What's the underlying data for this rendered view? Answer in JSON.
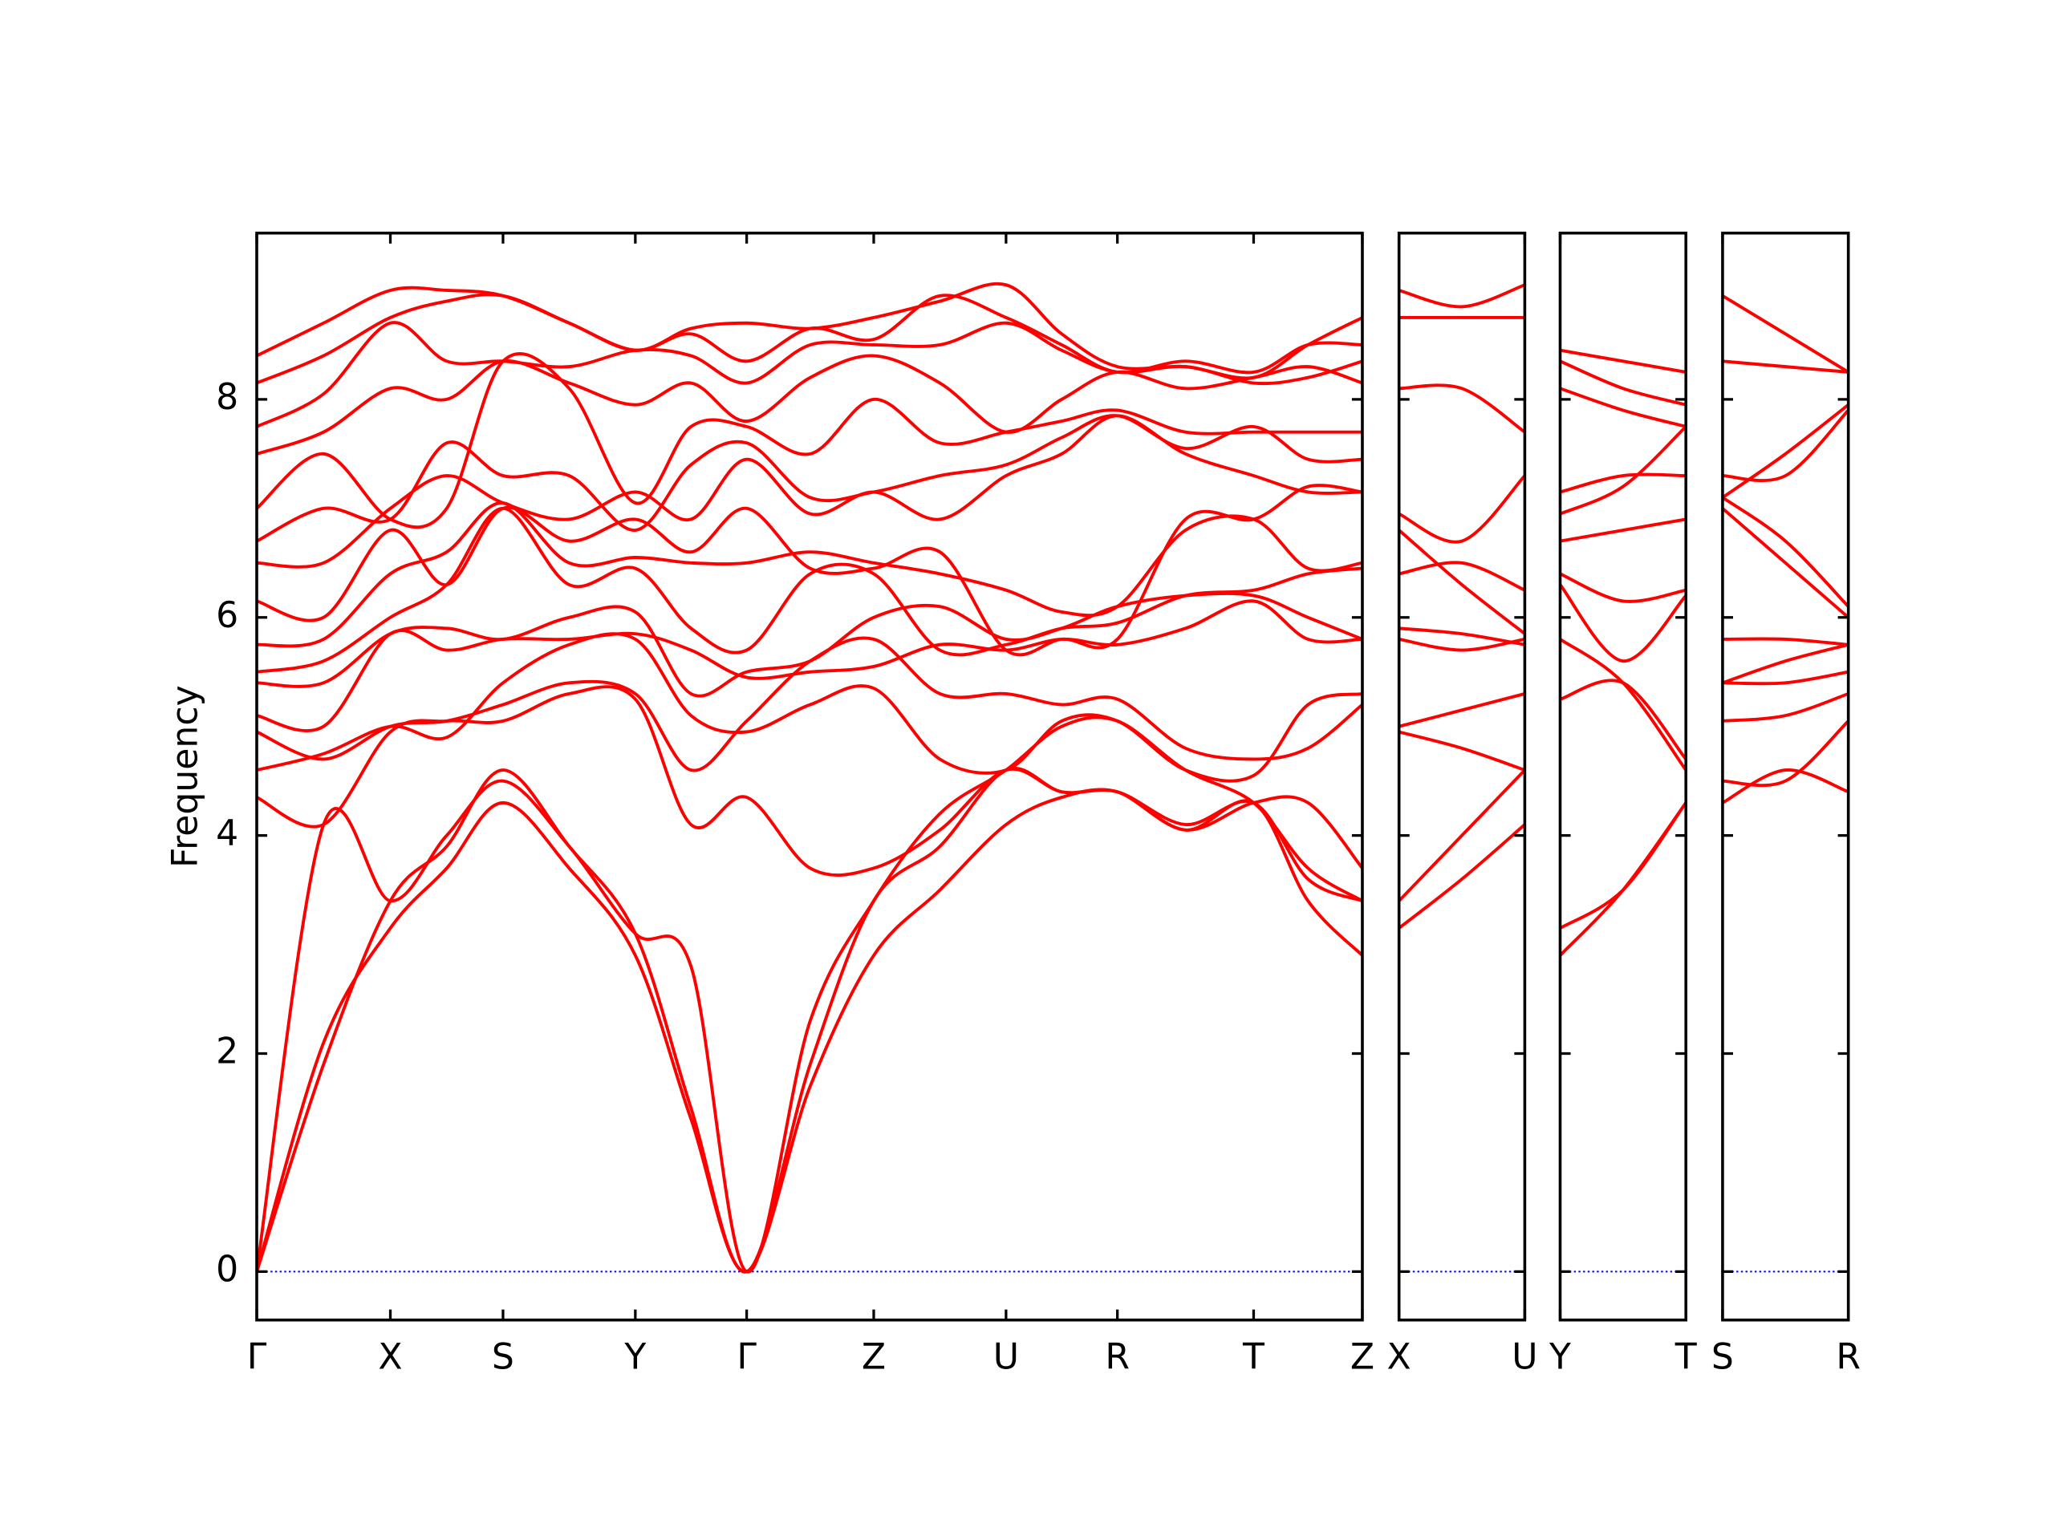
{
  "chart_data": [
    {
      "type": "line",
      "ylabel": "Frequency",
      "ylim": [
        -0.444,
        9.525
      ],
      "yticks": [
        0,
        2,
        4,
        6,
        8
      ],
      "hline": 0,
      "hline_color": "#0000ff",
      "xlim": [
        0,
        8.44
      ],
      "xticks": [
        {
          "value": 0,
          "label": "Γ"
        },
        {
          "value": 1.02,
          "label": "X"
        },
        {
          "value": 1.88,
          "label": "S"
        },
        {
          "value": 2.89,
          "label": "Y"
        },
        {
          "value": 3.74,
          "label": "Γ"
        },
        {
          "value": 4.71,
          "label": "Z"
        },
        {
          "value": 5.72,
          "label": "U"
        },
        {
          "value": 6.57,
          "label": "R"
        },
        {
          "value": 7.61,
          "label": "T"
        },
        {
          "value": 8.44,
          "label": "Z"
        }
      ],
      "x": [
        0,
        0.51,
        1.02,
        1.45,
        1.88,
        2.385,
        2.89,
        3.315,
        3.74,
        4.225,
        4.71,
        5.215,
        5.72,
        6.145,
        6.57,
        7.09,
        7.61,
        8.025,
        8.44
      ],
      "color": "#ff0000",
      "series": [
        {
          "values": [
            0,
            2.1,
            3.15,
            3.7,
            4.3,
            3.7,
            2.9,
            1.4,
            0,
            1.7,
            2.9,
            3.5,
            4.1,
            4.35,
            4.4,
            4.05,
            4.3,
            3.4,
            2.9
          ]
        },
        {
          "values": [
            0,
            1.9,
            3.4,
            3.9,
            4.6,
            3.9,
            3.1,
            1.5,
            0,
            1.9,
            3.4,
            3.9,
            4.6,
            4.4,
            4.4,
            4.1,
            4.3,
            3.6,
            3.4
          ]
        },
        {
          "values": [
            0,
            4.1,
            3.4,
            4.0,
            4.5,
            3.9,
            3.1,
            2.8,
            0,
            2.3,
            3.4,
            4.2,
            4.6,
            5.0,
            5.05,
            4.6,
            4.3,
            3.7,
            3.4
          ]
        },
        {
          "values": [
            4.35,
            4.1,
            4.95,
            5.05,
            5.05,
            5.3,
            5.25,
            4.1,
            4.35,
            3.7,
            3.7,
            4.05,
            4.6,
            4.4,
            4.4,
            4.05,
            4.3,
            4.3,
            3.7
          ]
        },
        {
          "values": [
            4.6,
            4.75,
            5.0,
            4.9,
            5.4,
            5.75,
            5.8,
            5.1,
            4.95,
            5.2,
            5.35,
            4.7,
            4.6,
            5.05,
            5.05,
            4.6,
            4.55,
            5.2,
            5.3
          ]
        },
        {
          "values": [
            4.95,
            4.7,
            5.0,
            5.05,
            5.2,
            5.4,
            5.3,
            4.6,
            5.05,
            5.6,
            5.8,
            5.3,
            5.3,
            5.2,
            5.25,
            4.8,
            4.7,
            4.8,
            5.2
          ]
        },
        {
          "values": [
            5.1,
            5.0,
            5.85,
            5.7,
            5.8,
            5.8,
            5.85,
            5.7,
            5.45,
            5.5,
            5.55,
            5.75,
            5.7,
            5.8,
            5.75,
            5.9,
            6.15,
            5.8,
            5.8
          ]
        },
        {
          "values": [
            5.4,
            5.4,
            5.85,
            5.9,
            5.8,
            6.0,
            6.05,
            5.3,
            5.5,
            5.6,
            6.0,
            6.1,
            5.8,
            5.9,
            6.1,
            6.2,
            6.2,
            6.0,
            5.8
          ]
        },
        {
          "values": [
            5.5,
            5.6,
            6.0,
            6.3,
            7.0,
            6.3,
            6.45,
            5.9,
            5.7,
            6.4,
            6.4,
            5.7,
            5.75,
            5.9,
            5.95,
            6.2,
            6.25,
            6.4,
            6.45
          ]
        },
        {
          "values": [
            5.75,
            5.8,
            6.4,
            6.6,
            7.05,
            6.5,
            6.55,
            6.5,
            6.5,
            6.6,
            6.5,
            6.4,
            6.25,
            6.05,
            6.1,
            6.8,
            6.9,
            6.45,
            6.5
          ]
        },
        {
          "values": [
            6.15,
            6.0,
            6.8,
            6.3,
            7.0,
            6.7,
            6.9,
            6.6,
            7.0,
            6.45,
            6.45,
            6.6,
            5.7,
            5.8,
            5.8,
            6.9,
            6.9,
            7.2,
            7.15
          ]
        },
        {
          "values": [
            6.5,
            6.5,
            7.0,
            7.3,
            7.05,
            6.9,
            7.15,
            6.9,
            7.45,
            6.95,
            7.15,
            6.9,
            7.3,
            7.5,
            7.85,
            7.5,
            7.3,
            7.15,
            7.15
          ]
        },
        {
          "values": [
            6.7,
            7.0,
            6.9,
            7.6,
            7.3,
            7.3,
            6.8,
            7.4,
            7.6,
            7.1,
            7.15,
            7.3,
            7.4,
            7.65,
            7.85,
            7.55,
            7.75,
            7.45,
            7.45
          ]
        },
        {
          "values": [
            7.0,
            7.5,
            6.9,
            7.0,
            8.35,
            8.1,
            7.05,
            7.75,
            7.75,
            7.5,
            8.0,
            7.6,
            7.7,
            7.8,
            7.9,
            7.7,
            7.7,
            7.7,
            7.7
          ]
        },
        {
          "values": [
            7.5,
            7.7,
            8.1,
            8.0,
            8.35,
            8.15,
            7.95,
            8.15,
            7.8,
            8.2,
            8.4,
            8.15,
            7.7,
            8.0,
            8.25,
            8.1,
            8.2,
            8.3,
            8.15
          ]
        },
        {
          "values": [
            7.75,
            8.05,
            8.7,
            8.35,
            8.35,
            8.3,
            8.45,
            8.4,
            8.15,
            8.5,
            8.5,
            8.5,
            8.7,
            8.45,
            8.25,
            8.3,
            8.15,
            8.2,
            8.35
          ]
        },
        {
          "values": [
            8.15,
            8.4,
            8.75,
            8.9,
            8.95,
            8.7,
            8.45,
            8.6,
            8.35,
            8.65,
            8.55,
            8.95,
            8.75,
            8.5,
            8.25,
            8.35,
            8.25,
            8.5,
            8.5
          ]
        },
        {
          "values": [
            8.4,
            8.7,
            9.0,
            9.0,
            8.95,
            8.7,
            8.45,
            8.65,
            8.7,
            8.65,
            8.75,
            8.9,
            9.05,
            8.6,
            8.3,
            8.3,
            8.2,
            8.5,
            8.75
          ]
        }
      ]
    },
    {
      "type": "line",
      "xlim": [
        0,
        1
      ],
      "xticks": [
        {
          "value": 0,
          "label": "X"
        },
        {
          "value": 1,
          "label": "U"
        }
      ],
      "x": [
        0,
        0.5,
        1
      ],
      "color": "#ff0000",
      "series": [
        {
          "values": [
            3.15,
            3.6,
            4.1
          ]
        },
        {
          "values": [
            3.4,
            4.0,
            4.6
          ]
        },
        {
          "values": [
            4.95,
            4.8,
            4.6
          ]
        },
        {
          "values": [
            5.0,
            5.15,
            5.3
          ]
        },
        {
          "values": [
            5.8,
            5.7,
            5.8
          ]
        },
        {
          "values": [
            5.9,
            5.85,
            5.75
          ]
        },
        {
          "values": [
            6.4,
            6.5,
            6.25
          ]
        },
        {
          "values": [
            6.8,
            6.3,
            5.85
          ]
        },
        {
          "values": [
            6.95,
            6.7,
            7.3
          ]
        },
        {
          "values": [
            8.1,
            8.1,
            7.7
          ]
        },
        {
          "values": [
            8.75,
            8.75,
            8.75
          ]
        },
        {
          "values": [
            9.0,
            8.85,
            9.05
          ]
        }
      ]
    },
    {
      "type": "line",
      "xlim": [
        0,
        1
      ],
      "xticks": [
        {
          "value": 0,
          "label": "Y"
        },
        {
          "value": 1,
          "label": "T"
        }
      ],
      "x": [
        0,
        0.5,
        1
      ],
      "color": "#ff0000",
      "series": [
        {
          "values": [
            2.9,
            3.5,
            4.3
          ]
        },
        {
          "values": [
            3.15,
            3.5,
            4.3
          ]
        },
        {
          "values": [
            5.25,
            5.4,
            4.7
          ]
        },
        {
          "values": [
            5.8,
            5.4,
            4.6
          ]
        },
        {
          "values": [
            6.3,
            5.6,
            6.2
          ]
        },
        {
          "values": [
            6.4,
            6.15,
            6.25
          ]
        },
        {
          "values": [
            6.7,
            6.8,
            6.9
          ]
        },
        {
          "values": [
            6.95,
            7.2,
            7.75
          ]
        },
        {
          "values": [
            7.15,
            7.3,
            7.3
          ]
        },
        {
          "values": [
            8.1,
            7.9,
            7.75
          ]
        },
        {
          "values": [
            8.35,
            8.1,
            7.95
          ]
        },
        {
          "values": [
            8.45,
            8.35,
            8.25
          ]
        }
      ]
    },
    {
      "type": "line",
      "xlim": [
        0,
        1
      ],
      "xticks": [
        {
          "value": 0,
          "label": "S"
        },
        {
          "value": 1,
          "label": "R"
        }
      ],
      "x": [
        0,
        0.5,
        1
      ],
      "color": "#ff0000",
      "series": [
        {
          "values": [
            4.3,
            4.6,
            4.4
          ]
        },
        {
          "values": [
            4.5,
            4.5,
            5.05
          ]
        },
        {
          "values": [
            5.05,
            5.1,
            5.3
          ]
        },
        {
          "values": [
            5.4,
            5.4,
            5.5
          ]
        },
        {
          "values": [
            5.4,
            5.6,
            5.75
          ]
        },
        {
          "values": [
            5.8,
            5.8,
            5.75
          ]
        },
        {
          "values": [
            7.0,
            6.5,
            6.0
          ]
        },
        {
          "values": [
            7.1,
            6.7,
            6.1
          ]
        },
        {
          "values": [
            7.3,
            7.3,
            7.9
          ]
        },
        {
          "values": [
            7.1,
            7.5,
            7.95
          ]
        },
        {
          "values": [
            8.35,
            8.3,
            8.25
          ]
        },
        {
          "values": [
            8.95,
            8.6,
            8.25
          ]
        }
      ]
    }
  ]
}
